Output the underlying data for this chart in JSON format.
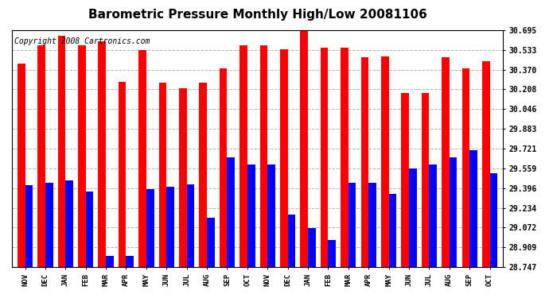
{
  "title": "Barometric Pressure Monthly High/Low 20081106",
  "copyright": "Copyright 2008 Cartronics.com",
  "months": [
    "NOV",
    "DEC",
    "JAN",
    "FEB",
    "MAR",
    "APR",
    "MAY",
    "JUN",
    "JUL",
    "AUG",
    "SEP",
    "OCT",
    "NOV",
    "DEC",
    "JAN",
    "FEB",
    "MAR",
    "APR",
    "MAY",
    "JUN",
    "JUL",
    "AUG",
    "SEP",
    "OCT"
  ],
  "highs": [
    30.42,
    30.57,
    30.65,
    30.57,
    30.6,
    30.27,
    30.53,
    30.26,
    30.22,
    30.26,
    30.38,
    30.57,
    30.57,
    30.54,
    30.7,
    30.55,
    30.55,
    30.47,
    30.48,
    30.18,
    30.18,
    30.47,
    30.38,
    30.44
  ],
  "lows": [
    29.42,
    29.44,
    29.46,
    29.37,
    28.84,
    28.84,
    29.39,
    29.41,
    29.43,
    29.15,
    29.65,
    29.59,
    29.59,
    29.18,
    29.07,
    28.97,
    29.44,
    29.44,
    29.35,
    29.56,
    29.59,
    29.65,
    29.71,
    29.52
  ],
  "yticks": [
    28.747,
    28.909,
    29.072,
    29.234,
    29.396,
    29.559,
    29.721,
    29.883,
    30.046,
    30.208,
    30.37,
    30.533,
    30.695
  ],
  "ymin": 28.747,
  "ymax": 30.695,
  "bar_color_high": "#FF0000",
  "bar_color_low": "#0000FF",
  "background_color": "#FFFFFF",
  "grid_color": "#AAAAAA",
  "title_fontsize": 11,
  "copyright_fontsize": 7
}
